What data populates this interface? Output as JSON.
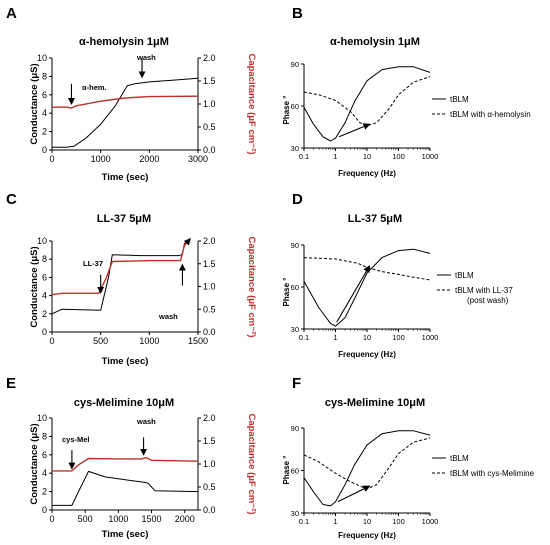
{
  "colors": {
    "conductance": "#000000",
    "capacitance": "#c0302b"
  },
  "panels": {
    "A": {
      "letter": "A",
      "title": "α-hemolysin 1μM",
      "xlabel": "Time (sec)",
      "ylabel_left": "Conductance (μS)",
      "ylabel_right": "Capacitance (μF cm⁻²)",
      "annotations": [
        {
          "text": "α-hem."
        },
        {
          "text": "wash"
        }
      ]
    },
    "B": {
      "letter": "B",
      "title": "α-hemolysin 1μM",
      "xlabel": "Frequency (Hz)",
      "ylabel": "Phase °",
      "legend": [
        {
          "label": "tBLM"
        },
        {
          "label": "tBLM with α-hemolysin"
        }
      ]
    },
    "C": {
      "letter": "C",
      "title": "LL-37 5μM",
      "xlabel": "Time (sec)",
      "ylabel_left": "Conductance (μS)",
      "ylabel_right": "Capacitance (μF cm⁻²)",
      "annotations": [
        {
          "text": "LL-37"
        },
        {
          "text": "wash"
        }
      ]
    },
    "D": {
      "letter": "D",
      "title": "LL-37 5μM",
      "xlabel": "Frequency (Hz)",
      "ylabel": "Phase °",
      "legend": [
        {
          "label": "tBLM"
        },
        {
          "label": "tBLM with LL-37"
        },
        {
          "label": "(post wash)"
        }
      ]
    },
    "E": {
      "letter": "E",
      "title": "cys-Melimine 10μM",
      "xlabel": "Time (sec)",
      "ylabel_left": "Conductance (μS)",
      "ylabel_right": "Capacitance (μF cm⁻²)",
      "annotations": [
        {
          "text": "cys-Mel"
        },
        {
          "text": "wash"
        }
      ]
    },
    "F": {
      "letter": "F",
      "title": "cys-Melimine 10μM",
      "xlabel": "Frequency (Hz)",
      "ylabel": "Phase °",
      "legend": [
        {
          "label": "tBLM"
        },
        {
          "label": "tBLM with cys-Melimine"
        }
      ]
    }
  },
  "chart_data": [
    {
      "id": "A",
      "type": "line",
      "xlim": [
        0,
        3000
      ],
      "xticks": [
        0,
        1000,
        2000,
        3000
      ],
      "ylim_left": [
        0,
        10
      ],
      "yticks_left": [
        0,
        2,
        4,
        6,
        8,
        10
      ],
      "ylim_right": [
        0,
        2.0
      ],
      "yticks_right": [
        "0.0",
        "0.5",
        "1.0",
        "1.5",
        "2.0"
      ],
      "series": [
        {
          "axis": "left",
          "color": "conductance",
          "style": "solid",
          "points": [
            [
              0,
              0.3
            ],
            [
              300,
              0.3
            ],
            [
              450,
              0.4
            ],
            [
              700,
              1.3
            ],
            [
              1000,
              2.8
            ],
            [
              1300,
              4.8
            ],
            [
              1550,
              7.0
            ],
            [
              1700,
              7.2
            ],
            [
              2000,
              7.4
            ],
            [
              2500,
              7.6
            ],
            [
              3000,
              7.8
            ]
          ]
        },
        {
          "axis": "right",
          "color": "capacitance",
          "style": "solid",
          "points": [
            [
              0,
              0.93
            ],
            [
              300,
              0.93
            ],
            [
              400,
              0.91
            ],
            [
              500,
              0.96
            ],
            [
              1000,
              1.06
            ],
            [
              1500,
              1.13
            ],
            [
              2000,
              1.16
            ],
            [
              3000,
              1.17
            ]
          ]
        }
      ],
      "arrows": [
        {
          "x": 400,
          "axis": "left",
          "tip": 5.0,
          "tail": 7.2
        },
        {
          "x": 1850,
          "axis": "left",
          "tip": 7.9,
          "tail": 10.0
        }
      ]
    },
    {
      "id": "B",
      "type": "line",
      "xscale": "log",
      "xlim": [
        0.1,
        1000
      ],
      "xticks": [
        "0.1",
        "1",
        "10",
        "100",
        "1000"
      ],
      "ylim": [
        30,
        90
      ],
      "yticks": [
        30,
        60,
        90
      ],
      "series": [
        {
          "name": "tBLM",
          "style": "solid",
          "points": [
            [
              0.1,
              59
            ],
            [
              0.2,
              47
            ],
            [
              0.4,
              38
            ],
            [
              0.7,
              35
            ],
            [
              1,
              37
            ],
            [
              2,
              48
            ],
            [
              4,
              63
            ],
            [
              10,
              78
            ],
            [
              30,
              86
            ],
            [
              100,
              88
            ],
            [
              300,
              88
            ],
            [
              1000,
              84
            ]
          ]
        },
        {
          "name": "tBLM with α-hemolysin",
          "style": "dashed",
          "points": [
            [
              0.1,
              70
            ],
            [
              0.3,
              68
            ],
            [
              1,
              64
            ],
            [
              3,
              56
            ],
            [
              6,
              48
            ],
            [
              10,
              46
            ],
            [
              20,
              48
            ],
            [
              50,
              58
            ],
            [
              100,
              68
            ],
            [
              300,
              77
            ],
            [
              1000,
              81
            ]
          ]
        }
      ],
      "arrows": [
        {
          "from": [
            1.3,
            38
          ],
          "to": [
            12,
            47
          ]
        }
      ]
    },
    {
      "id": "C",
      "type": "line",
      "xlim": [
        0,
        1500
      ],
      "xticks": [
        0,
        500,
        1000,
        1500
      ],
      "ylim_left": [
        0,
        10
      ],
      "yticks_left": [
        0,
        2,
        4,
        6,
        8,
        10
      ],
      "ylim_right": [
        0,
        2.0
      ],
      "yticks_right": [
        "0.0",
        "0.5",
        "1.0",
        "1.5",
        "2.0"
      ],
      "series": [
        {
          "axis": "left",
          "color": "conductance",
          "style": "solid",
          "points": [
            [
              0,
              2.0
            ],
            [
              100,
              2.5
            ],
            [
              500,
              2.4
            ],
            [
              580,
              6.0
            ],
            [
              620,
              8.5
            ],
            [
              900,
              8.4
            ],
            [
              1300,
              8.4
            ],
            [
              1340,
              8.5
            ],
            [
              1360,
              9.7
            ],
            [
              1400,
              10.0
            ]
          ]
        },
        {
          "axis": "right",
          "color": "capacitance",
          "style": "solid",
          "points": [
            [
              0,
              0.82
            ],
            [
              100,
              0.85
            ],
            [
              480,
              0.85
            ],
            [
              560,
              1.2
            ],
            [
              620,
              1.55
            ],
            [
              1000,
              1.57
            ],
            [
              1320,
              1.57
            ],
            [
              1360,
              1.9
            ],
            [
              1420,
              2.05
            ]
          ]
        }
      ],
      "arrows": [
        {
          "x": 500,
          "axis": "left",
          "tip": 4.3,
          "tail": 6.3
        },
        {
          "x": 1340,
          "axis": "left",
          "tip": 7.4,
          "tail": 5.1
        }
      ]
    },
    {
      "id": "D",
      "type": "line",
      "xscale": "log",
      "xlim": [
        0.1,
        1000
      ],
      "xticks": [
        "0.1",
        "1",
        "10",
        "100",
        "1000"
      ],
      "ylim": [
        30,
        90
      ],
      "yticks": [
        30,
        60,
        90
      ],
      "series": [
        {
          "name": "tBLM",
          "style": "solid",
          "points": [
            [
              0.1,
              64
            ],
            [
              0.3,
              45
            ],
            [
              0.7,
              34
            ],
            [
              1,
              32
            ],
            [
              2,
              38
            ],
            [
              5,
              56
            ],
            [
              10,
              70
            ],
            [
              30,
              81
            ],
            [
              100,
              86
            ],
            [
              300,
              87
            ],
            [
              1000,
              84
            ]
          ]
        },
        {
          "name": "tBLM with LL-37",
          "style": "dashed",
          "points": [
            [
              0.1,
              81
            ],
            [
              1,
              80
            ],
            [
              5,
              77
            ],
            [
              10,
              74
            ],
            [
              30,
              71
            ],
            [
              100,
              69
            ],
            [
              300,
              67
            ],
            [
              1000,
              65
            ]
          ]
        }
      ],
      "arrows": [
        {
          "from": [
            1.1,
            35
          ],
          "to": [
            12,
            75
          ]
        }
      ]
    },
    {
      "id": "E",
      "type": "line",
      "xlim": [
        0,
        2200
      ],
      "xticks": [
        0,
        500,
        1000,
        1500,
        2000
      ],
      "ylim_left": [
        0,
        10
      ],
      "yticks_left": [
        0,
        2,
        4,
        6,
        8,
        10
      ],
      "ylim_right": [
        0,
        2.0
      ],
      "yticks_right": [
        "0.0",
        "0.5",
        "1.0",
        "1.5",
        "2.0"
      ],
      "series": [
        {
          "axis": "left",
          "color": "conductance",
          "style": "solid",
          "points": [
            [
              0,
              0.5
            ],
            [
              100,
              0.5
            ],
            [
              300,
              0.5
            ],
            [
              400,
              2.0
            ],
            [
              550,
              4.2
            ],
            [
              800,
              3.6
            ],
            [
              1200,
              3.2
            ],
            [
              1400,
              3.0
            ],
            [
              1450,
              2.9
            ],
            [
              1550,
              2.1
            ],
            [
              2200,
              2.0
            ]
          ]
        },
        {
          "axis": "right",
          "color": "capacitance",
          "style": "solid",
          "points": [
            [
              0,
              0.85
            ],
            [
              300,
              0.85
            ],
            [
              400,
              0.98
            ],
            [
              550,
              1.12
            ],
            [
              1000,
              1.11
            ],
            [
              1350,
              1.11
            ],
            [
              1420,
              1.14
            ],
            [
              1500,
              1.08
            ],
            [
              2200,
              1.06
            ]
          ]
        }
      ],
      "arrows": [
        {
          "x": 300,
          "axis": "left",
          "tip": 4.5,
          "tail": 6.5
        },
        {
          "x": 1380,
          "axis": "left",
          "tip": 6.0,
          "tail": 7.9
        }
      ]
    },
    {
      "id": "F",
      "type": "line",
      "xscale": "log",
      "xlim": [
        0.1,
        1000
      ],
      "xticks": [
        "0.1",
        "1",
        "10",
        "100",
        "1000"
      ],
      "ylim": [
        30,
        90
      ],
      "yticks": [
        30,
        60,
        90
      ],
      "series": [
        {
          "name": "tBLM",
          "style": "solid",
          "points": [
            [
              0.1,
              55
            ],
            [
              0.2,
              45
            ],
            [
              0.4,
              36
            ],
            [
              0.7,
              35
            ],
            [
              1,
              38
            ],
            [
              2,
              50
            ],
            [
              4,
              64
            ],
            [
              10,
              78
            ],
            [
              30,
              86
            ],
            [
              100,
              88
            ],
            [
              300,
              88
            ],
            [
              1000,
              85
            ]
          ]
        },
        {
          "name": "tBLM with cys-Melimine",
          "style": "dashed",
          "points": [
            [
              0.1,
              71
            ],
            [
              0.3,
              66
            ],
            [
              1,
              58
            ],
            [
              3,
              52
            ],
            [
              6,
              49
            ],
            [
              10,
              47
            ],
            [
              20,
              50
            ],
            [
              50,
              62
            ],
            [
              100,
              72
            ],
            [
              300,
              80
            ],
            [
              1000,
              83
            ]
          ]
        }
      ],
      "arrows": [
        {
          "from": [
            1.2,
            38
          ],
          "to": [
            12,
            49
          ]
        }
      ]
    }
  ]
}
